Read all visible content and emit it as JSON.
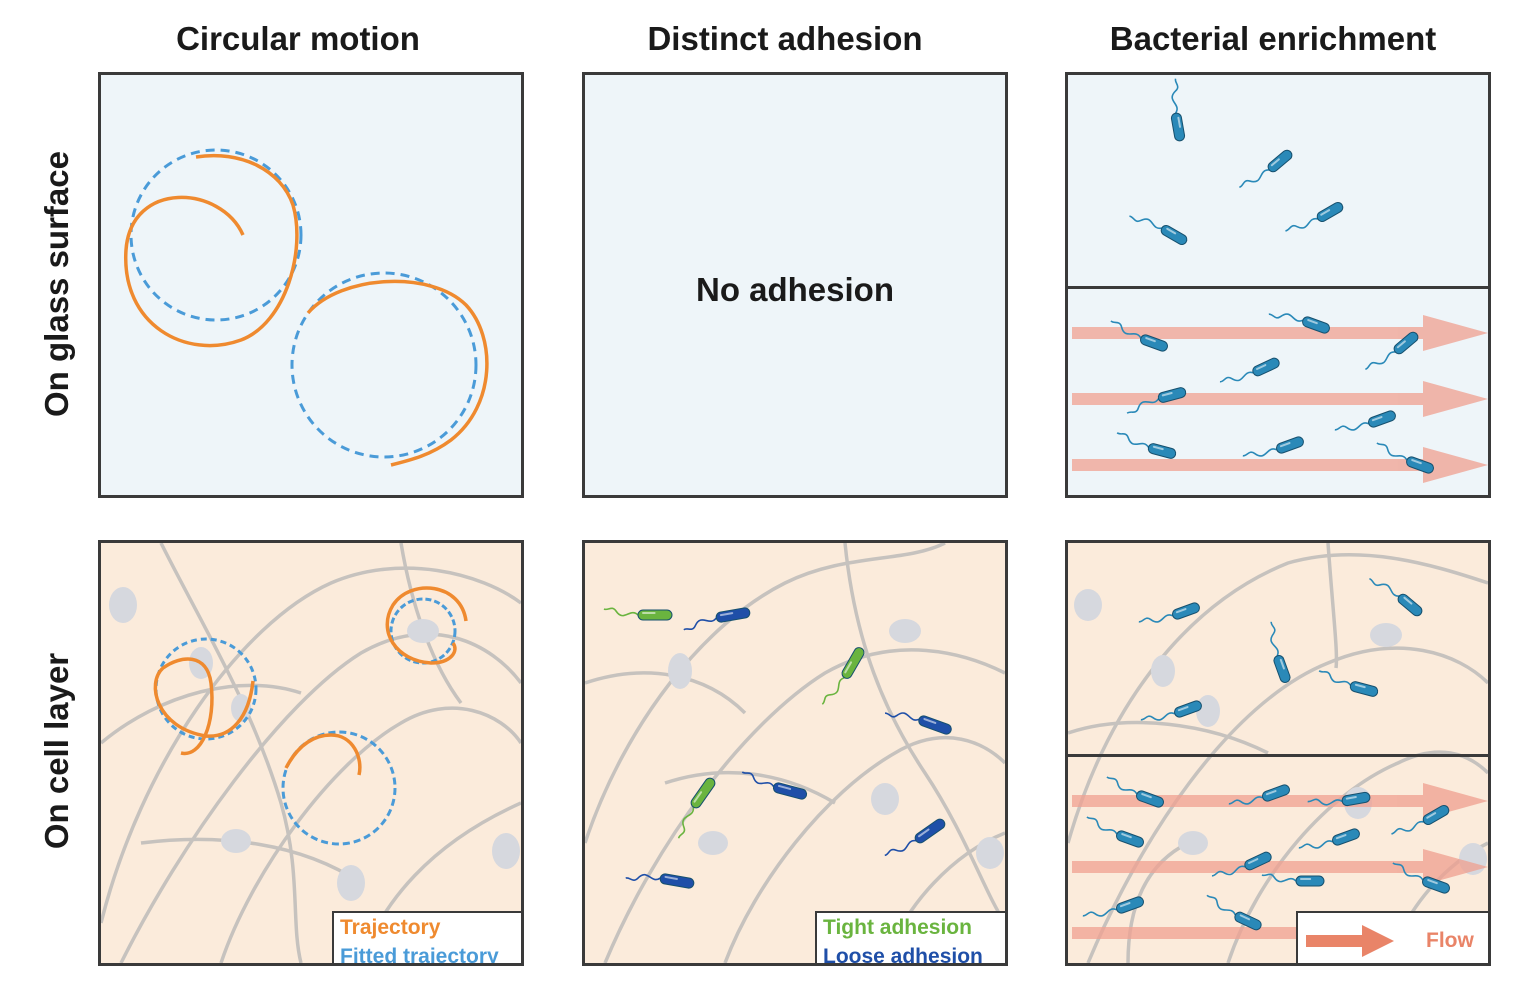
{
  "columns": {
    "circular": "Circular motion",
    "adhesion": "Distinct adhesion",
    "enrichment": "Bacterial enrichment"
  },
  "rows": {
    "glass": "On glass surface",
    "cell": "On cell layer"
  },
  "panels": {
    "no_adhesion": "No adhesion"
  },
  "legends": {
    "trajectory": "Trajectory",
    "fitted_trajectory": "Fitted trajectory",
    "tight_adhesion": "Tight adhesion",
    "loose_adhesion": "Loose adhesion",
    "flow": "Flow"
  },
  "colors": {
    "trajectory": "#ef8a2f",
    "fitted": "#4a9bd8",
    "tight": "#6ab43f",
    "loose": "#1f4fa8",
    "bacterium": "#2a89b8",
    "flow": "#f0a090",
    "glass_bg": "#eef5f9",
    "cell_bg": "#fbebdb",
    "cell_outline": "#c6c2be",
    "nucleus": "#d6d8de"
  }
}
